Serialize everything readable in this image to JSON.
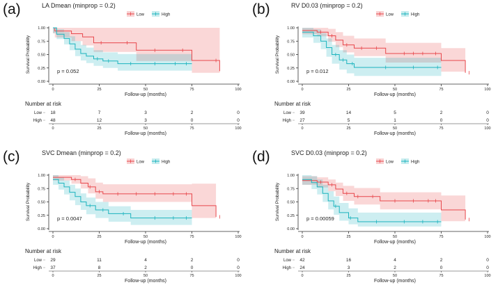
{
  "figure": {
    "panels": [
      {
        "label": "(a)",
        "title": "LA Dmean (minprop = 0.2)",
        "pvalue": "p = 0.052"
      },
      {
        "label": "(b)",
        "title": "RV D0.03 (minprop = 0.2)",
        "pvalue": "p = 0.012"
      },
      {
        "label": "(c)",
        "title": "SVC Dmean (minprop = 0.2)",
        "pvalue": "p = 0.0047"
      },
      {
        "label": "(d)",
        "title": "SVC D0.03 (minprop = 0.2)",
        "pvalue": "p = 0.00059"
      }
    ]
  },
  "chart_data": [
    {
      "type": "line",
      "title": "LA Dmean (minprop = 0.2)",
      "xlabel": "Follow-up (months)",
      "ylabel": "Survival Probability",
      "xlim": [
        0,
        100
      ],
      "ylim": [
        0,
        1
      ],
      "xticks": [
        "0",
        "25",
        "50",
        "75",
        "100"
      ],
      "yticks": [
        "0.00",
        "0.25",
        "0.50",
        "0.75",
        "1.00"
      ],
      "legend": {
        "position": "top",
        "entries": [
          "Low",
          "High"
        ]
      },
      "pvalue": "p = 0.052",
      "series": [
        {
          "name": "Low",
          "color": "#e8474b",
          "steps": [
            [
              0,
              1.0
            ],
            [
              1,
              0.94
            ],
            [
              10,
              0.89
            ],
            [
              16,
              0.83
            ],
            [
              22,
              0.72
            ],
            [
              35,
              0.72
            ],
            [
              45,
              0.58
            ],
            [
              75,
              0.39
            ],
            [
              90,
              0.19
            ]
          ],
          "ci_upper": [
            1.0,
            1.0,
            1.0,
            1.0,
            1.0,
            1.0,
            1.0,
            1.0,
            1.0
          ],
          "ci_lower": [
            0.9,
            0.82,
            0.75,
            0.67,
            0.55,
            0.55,
            0.38,
            0.16,
            0.0
          ],
          "censor": [
            26,
            40,
            55,
            70,
            88
          ]
        },
        {
          "name": "High",
          "color": "#1bb3bd",
          "steps": [
            [
              0,
              1.0
            ],
            [
              2,
              0.88
            ],
            [
              6,
              0.8
            ],
            [
              9,
              0.7
            ],
            [
              12,
              0.6
            ],
            [
              15,
              0.52
            ],
            [
              18,
              0.47
            ],
            [
              22,
              0.42
            ],
            [
              27,
              0.38
            ],
            [
              35,
              0.33
            ],
            [
              75,
              0.33
            ]
          ],
          "ci_upper": [
            1.0,
            0.97,
            0.92,
            0.84,
            0.75,
            0.68,
            0.63,
            0.58,
            0.54,
            0.51,
            0.51
          ],
          "ci_lower": [
            0.9,
            0.79,
            0.69,
            0.58,
            0.47,
            0.39,
            0.34,
            0.29,
            0.25,
            0.2,
            0.2
          ],
          "censor": [
            24,
            30,
            42,
            55,
            66,
            72
          ]
        }
      ],
      "risk_table": {
        "title": "Number at risk",
        "times": [
          "0",
          "25",
          "50",
          "75",
          "100"
        ],
        "rows": [
          {
            "group": "Low",
            "values": [
              "18",
              "7",
              "3",
              "2",
              "0"
            ]
          },
          {
            "group": "High",
            "values": [
              "48",
              "12",
              "3",
              "0",
              "0"
            ]
          }
        ]
      }
    },
    {
      "type": "line",
      "title": "RV D0.03 (minprop = 0.2)",
      "xlabel": "Follow-up (months)",
      "ylabel": "Survival Probability",
      "xlim": [
        0,
        100
      ],
      "ylim": [
        0,
        1
      ],
      "xticks": [
        "0",
        "25",
        "50",
        "75",
        "100"
      ],
      "yticks": [
        "0.00",
        "0.25",
        "0.50",
        "0.75",
        "1.00"
      ],
      "legend": {
        "position": "top",
        "entries": [
          "Low",
          "High"
        ]
      },
      "pvalue": "p = 0.012",
      "series": [
        {
          "name": "Low",
          "color": "#e8474b",
          "steps": [
            [
              0,
              0.95
            ],
            [
              8,
              0.92
            ],
            [
              14,
              0.85
            ],
            [
              18,
              0.77
            ],
            [
              22,
              0.68
            ],
            [
              28,
              0.62
            ],
            [
              45,
              0.52
            ],
            [
              75,
              0.39
            ],
            [
              88,
              0.16
            ]
          ],
          "ci_upper": [
            1.0,
            1.0,
            0.98,
            0.92,
            0.85,
            0.8,
            0.72,
            0.62,
            0.82
          ],
          "ci_lower": [
            0.88,
            0.84,
            0.74,
            0.64,
            0.54,
            0.47,
            0.35,
            0.18,
            0.0
          ],
          "censor": [
            10,
            16,
            24,
            32,
            40,
            55,
            60,
            65,
            72,
            90
          ]
        },
        {
          "name": "High",
          "color": "#1bb3bd",
          "steps": [
            [
              0,
              0.92
            ],
            [
              6,
              0.85
            ],
            [
              10,
              0.75
            ],
            [
              13,
              0.63
            ],
            [
              16,
              0.5
            ],
            [
              20,
              0.4
            ],
            [
              24,
              0.33
            ],
            [
              28,
              0.26
            ],
            [
              75,
              0.26
            ]
          ],
          "ci_upper": [
            1.0,
            0.97,
            0.9,
            0.8,
            0.68,
            0.58,
            0.5,
            0.44,
            0.44
          ],
          "ci_lower": [
            0.82,
            0.72,
            0.6,
            0.46,
            0.33,
            0.22,
            0.15,
            0.1,
            0.1
          ],
          "censor": [
            18,
            22,
            27,
            45,
            60,
            73
          ]
        }
      ],
      "risk_table": {
        "title": "Number at risk",
        "times": [
          "0",
          "25",
          "50",
          "75",
          "100"
        ],
        "rows": [
          {
            "group": "Low",
            "values": [
              "39",
              "14",
              "5",
              "2",
              "0"
            ]
          },
          {
            "group": "High",
            "values": [
              "27",
              "5",
              "1",
              "0",
              "0"
            ]
          }
        ]
      }
    },
    {
      "type": "line",
      "title": "SVC Dmean (minprop = 0.2)",
      "xlabel": "Follow-up (months)",
      "ylabel": "Survival Probability",
      "xlim": [
        0,
        100
      ],
      "ylim": [
        0,
        1
      ],
      "xticks": [
        "0",
        "25",
        "50",
        "75",
        "100"
      ],
      "yticks": [
        "0.00",
        "0.25",
        "0.50",
        "0.75",
        "1.00"
      ],
      "legend": {
        "position": "top",
        "entries": [
          "Low",
          "High"
        ]
      },
      "pvalue": "p = 0.0047",
      "series": [
        {
          "name": "Low",
          "color": "#e8474b",
          "steps": [
            [
              0,
              0.96
            ],
            [
              10,
              0.92
            ],
            [
              15,
              0.85
            ],
            [
              19,
              0.78
            ],
            [
              23,
              0.69
            ],
            [
              27,
              0.65
            ],
            [
              75,
              0.43
            ],
            [
              88,
              0.22
            ]
          ],
          "ci_upper": [
            1.0,
            1.0,
            0.98,
            0.94,
            0.86,
            0.83,
            0.84,
            1.0
          ],
          "ci_lower": [
            0.9,
            0.84,
            0.75,
            0.66,
            0.56,
            0.5,
            0.2,
            0.0
          ],
          "censor": [
            12,
            20,
            25,
            35,
            45,
            55,
            65,
            72,
            90
          ]
        },
        {
          "name": "High",
          "color": "#1bb3bd",
          "steps": [
            [
              0,
              0.92
            ],
            [
              3,
              0.85
            ],
            [
              6,
              0.78
            ],
            [
              9,
              0.68
            ],
            [
              12,
              0.6
            ],
            [
              15,
              0.5
            ],
            [
              18,
              0.43
            ],
            [
              23,
              0.35
            ],
            [
              30,
              0.28
            ],
            [
              42,
              0.2
            ],
            [
              75,
              0.2
            ]
          ],
          "ci_upper": [
            1.0,
            0.96,
            0.9,
            0.82,
            0.75,
            0.66,
            0.58,
            0.5,
            0.42,
            0.35,
            0.35
          ],
          "ci_lower": [
            0.82,
            0.73,
            0.64,
            0.53,
            0.44,
            0.35,
            0.27,
            0.2,
            0.13,
            0.07,
            0.07
          ],
          "censor": [
            20,
            27,
            38,
            55,
            65,
            72
          ]
        }
      ],
      "risk_table": {
        "title": "Number at risk",
        "times": [
          "0",
          "25",
          "50",
          "75",
          "100"
        ],
        "rows": [
          {
            "group": "Low",
            "values": [
              "29",
              "11",
              "4",
              "2",
              "0"
            ]
          },
          {
            "group": "High",
            "values": [
              "37",
              "8",
              "2",
              "0",
              "0"
            ]
          }
        ]
      }
    },
    {
      "type": "line",
      "title": "SVC D0.03 (minprop = 0.2)",
      "xlabel": "Follow-up (months)",
      "ylabel": "Survival Probability",
      "xlim": [
        0,
        100
      ],
      "ylim": [
        0,
        1
      ],
      "xticks": [
        "0",
        "25",
        "50",
        "75",
        "100"
      ],
      "yticks": [
        "0.00",
        "0.25",
        "0.50",
        "0.75",
        "1.00"
      ],
      "legend": {
        "position": "top",
        "entries": [
          "Low",
          "High"
        ]
      },
      "pvalue": "p = 0.00059",
      "series": [
        {
          "name": "Low",
          "color": "#e8474b",
          "steps": [
            [
              0,
              0.9
            ],
            [
              8,
              0.87
            ],
            [
              14,
              0.82
            ],
            [
              18,
              0.74
            ],
            [
              22,
              0.66
            ],
            [
              28,
              0.6
            ],
            [
              42,
              0.52
            ],
            [
              75,
              0.35
            ],
            [
              88,
              0.17
            ]
          ],
          "ci_upper": [
            0.98,
            0.96,
            0.92,
            0.86,
            0.8,
            0.76,
            0.68,
            0.62,
            0.62
          ],
          "ci_lower": [
            0.82,
            0.77,
            0.7,
            0.61,
            0.52,
            0.45,
            0.36,
            0.14,
            0.0
          ],
          "censor": [
            10,
            16,
            24,
            30,
            38,
            50,
            60,
            68,
            72,
            90
          ]
        },
        {
          "name": "High",
          "color": "#1bb3bd",
          "steps": [
            [
              0,
              0.92
            ],
            [
              5,
              0.86
            ],
            [
              8,
              0.78
            ],
            [
              11,
              0.66
            ],
            [
              14,
              0.52
            ],
            [
              17,
              0.42
            ],
            [
              20,
              0.3
            ],
            [
              25,
              0.2
            ],
            [
              30,
              0.13
            ],
            [
              75,
              0.13
            ]
          ],
          "ci_upper": [
            1.0,
            0.98,
            0.92,
            0.82,
            0.7,
            0.6,
            0.48,
            0.38,
            0.3,
            0.3
          ],
          "ci_lower": [
            0.82,
            0.74,
            0.64,
            0.5,
            0.36,
            0.26,
            0.15,
            0.08,
            0.04,
            0.04
          ],
          "censor": [
            18,
            26,
            40,
            55,
            65,
            73
          ]
        }
      ],
      "risk_table": {
        "title": "Number at risk",
        "times": [
          "0",
          "25",
          "50",
          "75",
          "100"
        ],
        "rows": [
          {
            "group": "Low",
            "values": [
              "42",
              "16",
              "4",
              "2",
              "0"
            ]
          },
          {
            "group": "High",
            "values": [
              "24",
              "3",
              "2",
              "0",
              "0"
            ]
          }
        ]
      }
    }
  ]
}
